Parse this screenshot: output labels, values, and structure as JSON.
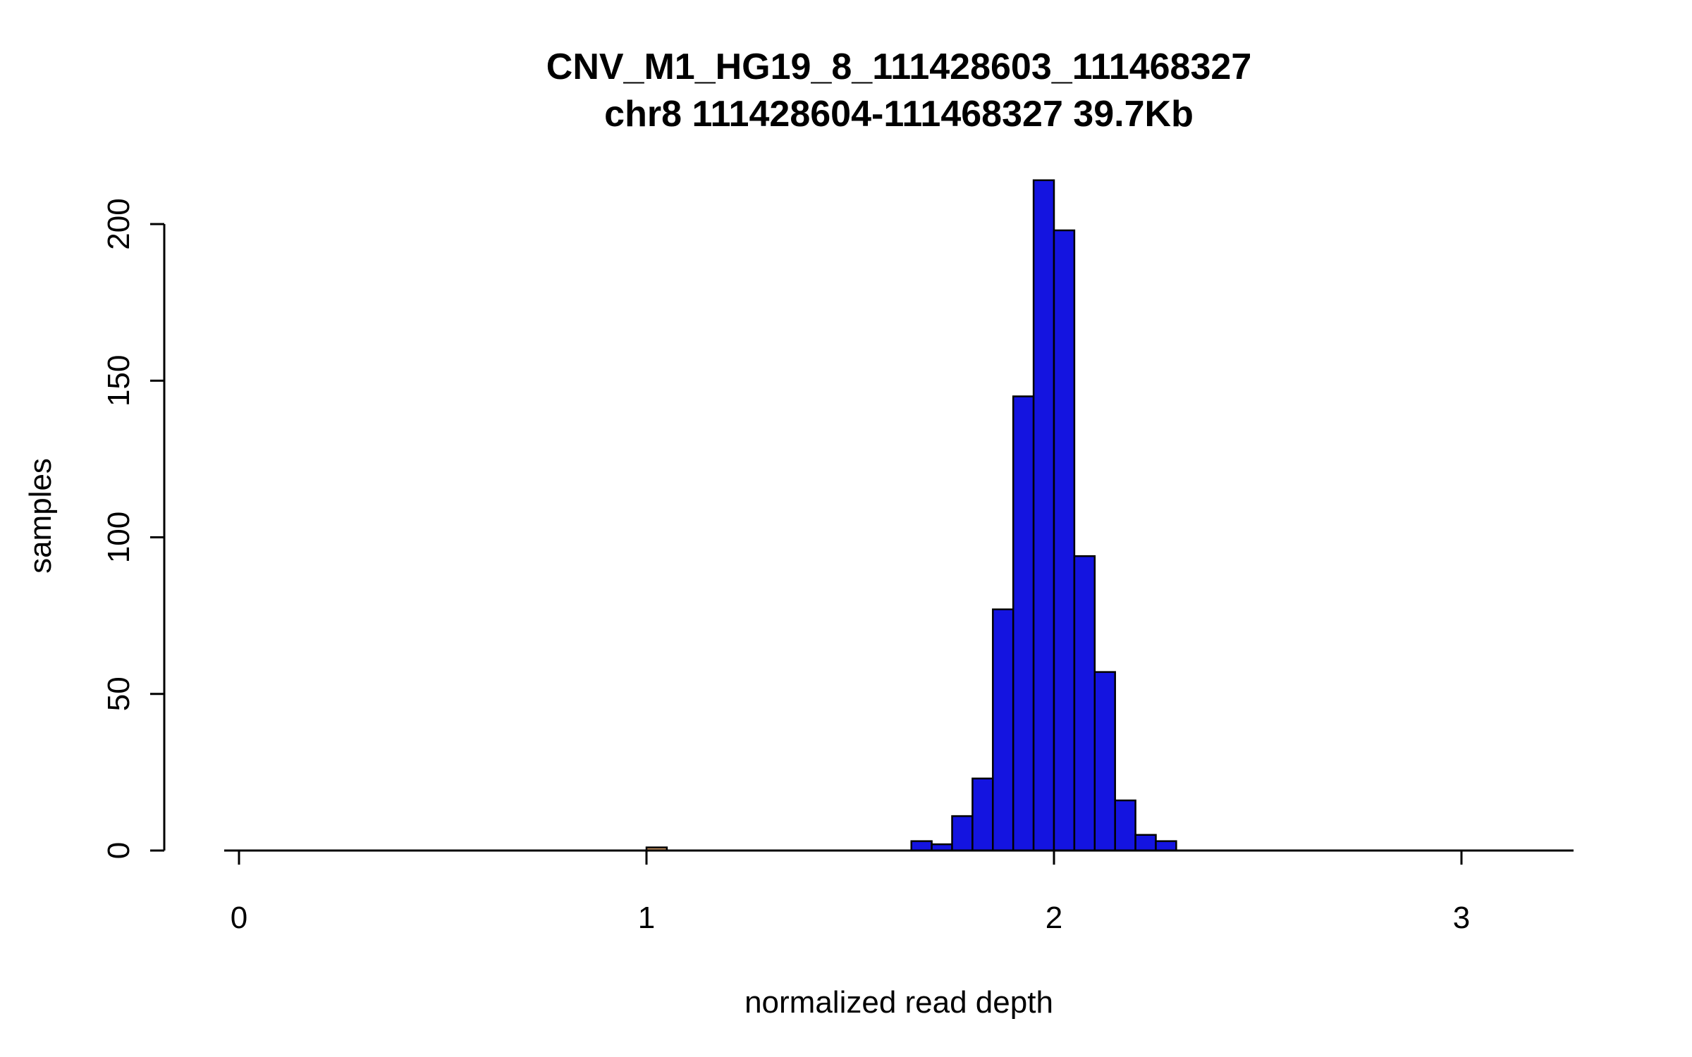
{
  "chart_data": {
    "type": "bar",
    "title": "CNV_M1_HG19_8_111428603_111468327",
    "subtitle": "chr8 111428604-111468327 39.7Kb",
    "xlabel": "normalized read depth",
    "ylabel": "samples",
    "x_tick_labels": [
      "0",
      "1",
      "2",
      "3"
    ],
    "x_tick_values": [
      0,
      1,
      2,
      3
    ],
    "y_tick_labels": [
      "0",
      "50",
      "100",
      "150",
      "200"
    ],
    "y_tick_values": [
      0,
      50,
      100,
      150,
      200
    ],
    "xlim": [
      -0.05,
      3.3
    ],
    "ylim": [
      0,
      215
    ],
    "grid": "off",
    "legend": "none",
    "bin_width": 0.05,
    "bar_color": "#1414E0",
    "bar_border_color": "#000000",
    "outlier_bar_color": "#C8935F",
    "axis_color": "#000000",
    "background_color": "#FFFFFF",
    "bars": [
      {
        "x0": 1.0,
        "count": 1,
        "color": "#C8935F"
      },
      {
        "x0": 1.65,
        "count": 3
      },
      {
        "x0": 1.7,
        "count": 2
      },
      {
        "x0": 1.75,
        "count": 11
      },
      {
        "x0": 1.8,
        "count": 23
      },
      {
        "x0": 1.85,
        "count": 77
      },
      {
        "x0": 1.9,
        "count": 145
      },
      {
        "x0": 1.95,
        "count": 214
      },
      {
        "x0": 2.0,
        "count": 198
      },
      {
        "x0": 2.05,
        "count": 94
      },
      {
        "x0": 2.1,
        "count": 57
      },
      {
        "x0": 2.15,
        "count": 16
      },
      {
        "x0": 2.2,
        "count": 5
      },
      {
        "x0": 2.25,
        "count": 3
      }
    ]
  }
}
